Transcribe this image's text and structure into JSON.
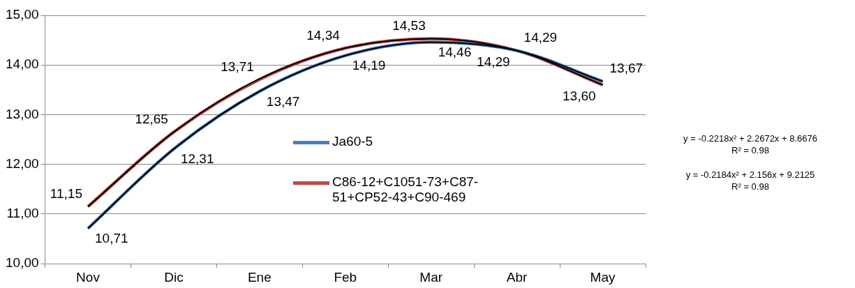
{
  "chart_data": {
    "type": "line",
    "categories": [
      "Nov",
      "Dic",
      "Ene",
      "Feb",
      "Mar",
      "Abr",
      "May"
    ],
    "series": [
      {
        "name": "Ja60-5",
        "color": "#4a7ebb",
        "values": [
          10.71,
          12.31,
          13.47,
          14.19,
          14.46,
          14.29,
          13.67
        ],
        "value_labels": [
          "10,71",
          "12,31",
          "13,47",
          "14,19",
          "14,46",
          "14,29",
          "13,67"
        ]
      },
      {
        "name": "C86-12+C1051-73+C87-51+CP52-43+C90-469",
        "color": "#be4b48",
        "values": [
          11.15,
          12.65,
          13.71,
          14.34,
          14.53,
          14.29,
          13.6
        ],
        "value_labels": [
          "11,15",
          "12,65",
          "13,71",
          "14,34",
          "14,53",
          "14,29",
          "13,60"
        ]
      },
      {
        "type": "line",
        "color": "#000000",
        "values": [
          10.71,
          12.31,
          13.47,
          14.19,
          14.46,
          14.29,
          13.67
        ]
      },
      {
        "type": "line",
        "color": "#000000",
        "values": [
          11.15,
          12.65,
          13.72,
          14.34,
          14.53,
          14.29,
          13.6
        ]
      }
    ],
    "ylim": [
      10,
      15
    ],
    "yticks": [
      {
        "value": 10,
        "label": "10,00"
      },
      {
        "value": 11,
        "label": "11,00"
      },
      {
        "value": 12,
        "label": "12,00"
      },
      {
        "value": 13,
        "label": "13,00"
      },
      {
        "value": 14,
        "label": "14,00"
      },
      {
        "value": 15,
        "label": "15,00"
      }
    ],
    "grid": "y",
    "legend": "center",
    "marker": "none",
    "line_style": "solid",
    "annotations": [
      "y = -0.2218x² + 2.2672x + 8.6676",
      "R² = 0.98",
      "y = -0.2184x² + 2.156x + 9.2125",
      "R² = 0.98"
    ]
  }
}
